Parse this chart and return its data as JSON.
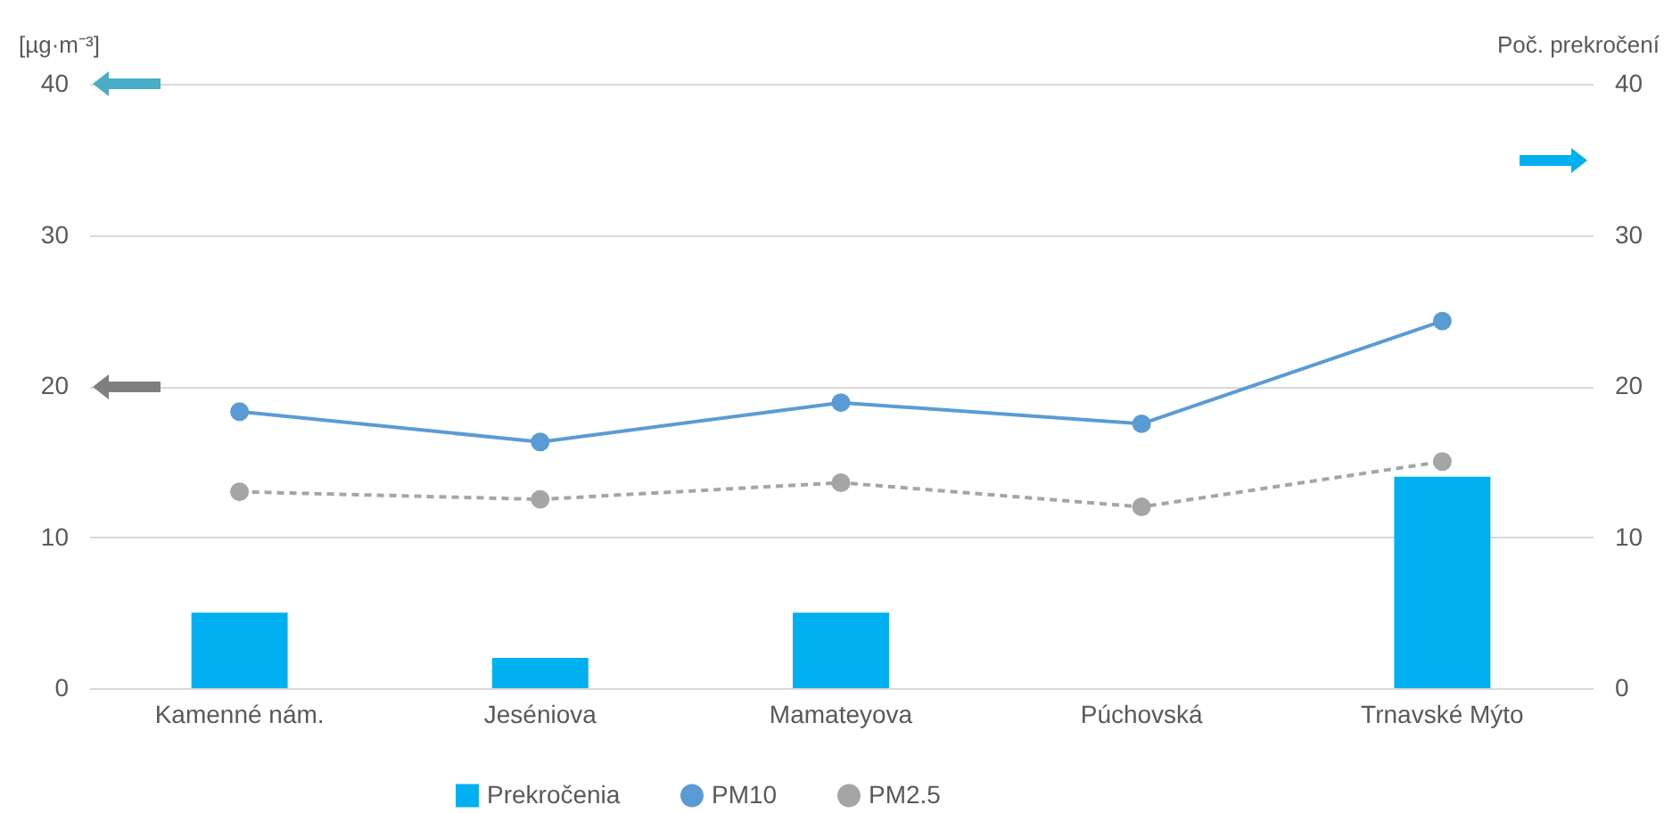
{
  "chart_data": {
    "type": "bar",
    "ylabel": "[µg·m⁻³]",
    "y2label": "Poč. prekročení",
    "categories": [
      "Kamenné nám.",
      "Jeséniova",
      "Mamateyova",
      "Púchovská",
      "Trnavské Mýto"
    ],
    "series": [
      {
        "name": "Prekročenia",
        "axis": "y2",
        "color": "#00b0f0",
        "values": [
          5,
          2,
          5,
          0,
          14
        ]
      },
      {
        "name": "PM10",
        "type": "line",
        "color": "#5b9bd5",
        "line_style": "solid",
        "values": [
          18.3,
          16.3,
          18.9,
          17.5,
          24.3
        ]
      },
      {
        "name": "PM2.5",
        "type": "line",
        "color": "#a5a5a5",
        "line_style": "dashed",
        "values": [
          13.0,
          12.5,
          13.6,
          12.0,
          15.0
        ]
      }
    ],
    "ylim": [
      0,
      40
    ],
    "yticks": [
      0,
      10,
      20,
      30,
      40
    ],
    "y2lim": [
      0,
      40
    ],
    "y2ticks": [
      0,
      10,
      20,
      30,
      40
    ],
    "grid": "y",
    "legend": "bottom",
    "marker": "circle"
  }
}
